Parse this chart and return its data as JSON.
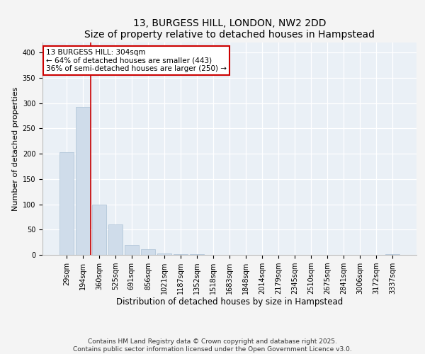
{
  "title": "13, BURGESS HILL, LONDON, NW2 2DD",
  "subtitle": "Size of property relative to detached houses in Hampstead",
  "xlabel": "Distribution of detached houses by size in Hampstead",
  "ylabel": "Number of detached properties",
  "bar_color": "#cfdcea",
  "bar_edge_color": "#aac0d4",
  "background_color": "#eaf0f6",
  "grid_color": "#ffffff",
  "annotation_line_color": "#cc0000",
  "annotation_box_color": "#cc0000",
  "annotation_text": "13 BURGESS HILL: 304sqm\n← 64% of detached houses are smaller (443)\n36% of semi-detached houses are larger (250) →",
  "categories": [
    "29sqm",
    "194sqm",
    "360sqm",
    "525sqm",
    "691sqm",
    "856sqm",
    "1021sqm",
    "1187sqm",
    "1352sqm",
    "1518sqm",
    "1683sqm",
    "1848sqm",
    "2014sqm",
    "2179sqm",
    "2345sqm",
    "2510sqm",
    "2675sqm",
    "2841sqm",
    "3006sqm",
    "3172sqm",
    "3337sqm"
  ],
  "values": [
    203,
    293,
    100,
    60,
    19,
    11,
    3,
    2,
    1,
    0,
    0,
    0,
    0,
    0,
    0,
    0,
    0,
    0,
    0,
    0,
    1
  ],
  "ylim": [
    0,
    420
  ],
  "yticks": [
    0,
    50,
    100,
    150,
    200,
    250,
    300,
    350,
    400
  ],
  "vline_bar_index": 1,
  "footer": "Contains HM Land Registry data © Crown copyright and database right 2025.\nContains public sector information licensed under the Open Government Licence v3.0.",
  "footer_fontsize": 6.5,
  "title_fontsize": 10,
  "xlabel_fontsize": 8.5,
  "ylabel_fontsize": 8,
  "tick_fontsize": 7,
  "annot_fontsize": 7.5
}
